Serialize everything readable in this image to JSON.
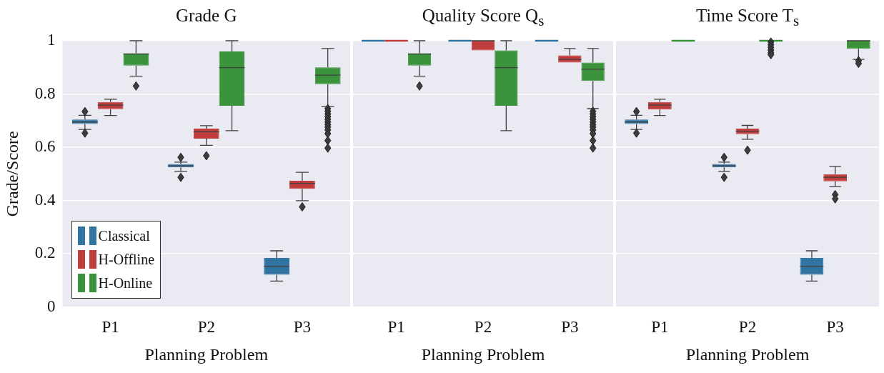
{
  "chart_data": [
    {
      "type": "box",
      "title": "Grade G",
      "xlabel": "Planning Problem",
      "ylabel": "Grade/Score",
      "categories": [
        "P1",
        "P2",
        "P3"
      ],
      "ylim": [
        0,
        1
      ],
      "yticks": [
        0,
        0.2,
        0.4,
        0.6,
        0.8,
        1
      ],
      "grid": "y",
      "legend": "bottom left",
      "marker": "diamond",
      "series": [
        {
          "name": "Classical",
          "color": "#3274a1",
          "boxes": [
            {
              "low": 0.667,
              "q1": 0.687,
              "median": 0.695,
              "q3": 0.704,
              "high": 0.72,
              "outliers": [
                0.734,
                0.653
              ]
            },
            {
              "low": 0.509,
              "q1": 0.524,
              "median": 0.53,
              "q3": 0.537,
              "high": 0.544,
              "outliers": [
                0.562,
                0.487
              ]
            },
            {
              "low": 0.097,
              "q1": 0.121,
              "median": 0.152,
              "q3": 0.184,
              "high": 0.211
            }
          ]
        },
        {
          "name": "H-Offline",
          "color": "#c03d3e",
          "boxes": [
            {
              "low": 0.719,
              "q1": 0.743,
              "median": 0.758,
              "q3": 0.77,
              "high": 0.78
            },
            {
              "low": 0.607,
              "q1": 0.632,
              "median": 0.658,
              "q3": 0.67,
              "high": 0.681,
              "outliers": [
                0.568
              ]
            },
            {
              "low": 0.399,
              "q1": 0.444,
              "median": 0.464,
              "q3": 0.474,
              "high": 0.506,
              "outliers": [
                0.376
              ]
            }
          ]
        },
        {
          "name": "H-Online",
          "color": "#3a923a",
          "boxes": [
            {
              "low": 0.867,
              "q1": 0.907,
              "median": 0.95,
              "q3": 0.953,
              "high": 1,
              "outliers": [
                0.83
              ]
            },
            {
              "low": 0.662,
              "q1": 0.756,
              "median": 0.899,
              "q3": 0.96,
              "high": 1
            },
            {
              "low": 0.753,
              "q1": 0.837,
              "median": 0.871,
              "q3": 0.9,
              "high": 0.971,
              "outliers": [
                0.745,
                0.735,
                0.725,
                0.715,
                0.705,
                0.695,
                0.685,
                0.676,
                0.665,
                0.651,
                0.625,
                0.597
              ]
            }
          ]
        }
      ]
    },
    {
      "type": "box",
      "title": "Quality Score Q$_{s}$",
      "xlabel": "Planning Problem",
      "categories": [
        "P1",
        "P2",
        "P3"
      ],
      "ylim": [
        0,
        1
      ],
      "yticks": [
        0,
        0.2,
        0.4,
        0.6,
        0.8,
        1
      ],
      "grid": "y",
      "tick_labels": "x",
      "marker": "diamond",
      "series": [
        {
          "color": "#3274a1",
          "boxes": [
            {
              "low": 1,
              "q1": 1,
              "median": 1,
              "q3": 1,
              "high": 1
            },
            {
              "low": 1,
              "q1": 1,
              "median": 1,
              "q3": 1,
              "high": 1
            },
            {
              "low": 1,
              "q1": 1,
              "median": 1,
              "q3": 1,
              "high": 1
            }
          ]
        },
        {
          "color": "#c03d3e",
          "boxes": [
            {
              "low": 1,
              "q1": 1,
              "median": 1,
              "q3": 1,
              "high": 1
            },
            {
              "low": 0.964,
              "q1": 0.964,
              "median": 1,
              "q3": 1,
              "high": 1
            },
            {
              "low": 0.918,
              "q1": 0.918,
              "median": 0.93,
              "q3": 0.945,
              "high": 0.971
            }
          ]
        },
        {
          "color": "#3a923a",
          "boxes": [
            {
              "low": 0.867,
              "q1": 0.907,
              "median": 0.95,
              "q3": 0.953,
              "high": 1,
              "outliers": [
                0.83
              ]
            },
            {
              "low": 0.662,
              "q1": 0.756,
              "median": 0.899,
              "q3": 0.964,
              "high": 1
            },
            {
              "low": 0.745,
              "q1": 0.849,
              "median": 0.893,
              "q3": 0.918,
              "high": 0.971,
              "outliers": [
                0.735,
                0.725,
                0.715,
                0.705,
                0.695,
                0.685,
                0.676,
                0.665,
                0.651,
                0.625,
                0.597
              ]
            }
          ]
        }
      ]
    },
    {
      "type": "box",
      "title": "Time Score T$_{s}$",
      "xlabel": "Planning Problem",
      "categories": [
        "P1",
        "P2",
        "P3"
      ],
      "ylim": [
        0,
        1
      ],
      "yticks": [
        0,
        0.2,
        0.4,
        0.6,
        0.8,
        1
      ],
      "grid": "y",
      "tick_labels": "x",
      "marker": "diamond",
      "series": [
        {
          "color": "#3274a1",
          "boxes": [
            {
              "low": 0.667,
              "q1": 0.687,
              "median": 0.695,
              "q3": 0.704,
              "high": 0.72,
              "outliers": [
                0.734,
                0.653
              ]
            },
            {
              "low": 0.509,
              "q1": 0.524,
              "median": 0.53,
              "q3": 0.537,
              "high": 0.544,
              "outliers": [
                0.562,
                0.487
              ]
            },
            {
              "low": 0.097,
              "q1": 0.121,
              "median": 0.152,
              "q3": 0.184,
              "high": 0.211
            }
          ]
        },
        {
          "color": "#c03d3e",
          "boxes": [
            {
              "low": 0.719,
              "q1": 0.742,
              "median": 0.758,
              "q3": 0.77,
              "high": 0.78
            },
            {
              "low": 0.63,
              "q1": 0.649,
              "median": 0.66,
              "q3": 0.67,
              "high": 0.682,
              "outliers": [
                0.589
              ]
            },
            {
              "low": 0.452,
              "q1": 0.472,
              "median": 0.487,
              "q3": 0.499,
              "high": 0.528,
              "outliers": [
                0.422,
                0.406
              ]
            }
          ]
        },
        {
          "color": "#3a923a",
          "boxes": [
            {
              "low": 1,
              "q1": 1,
              "median": 1,
              "q3": 1,
              "high": 1
            },
            {
              "low": 1,
              "q1": 1,
              "median": 1,
              "q3": 1,
              "high": 1,
              "outliers": [
                0.995,
                0.985,
                0.975,
                0.965,
                0.955,
                0.948
              ]
            },
            {
              "low": 0.93,
              "q1": 0.97,
              "median": 1,
              "q3": 1,
              "high": 1,
              "outliers": [
                0.925,
                0.915
              ]
            }
          ]
        }
      ]
    }
  ]
}
